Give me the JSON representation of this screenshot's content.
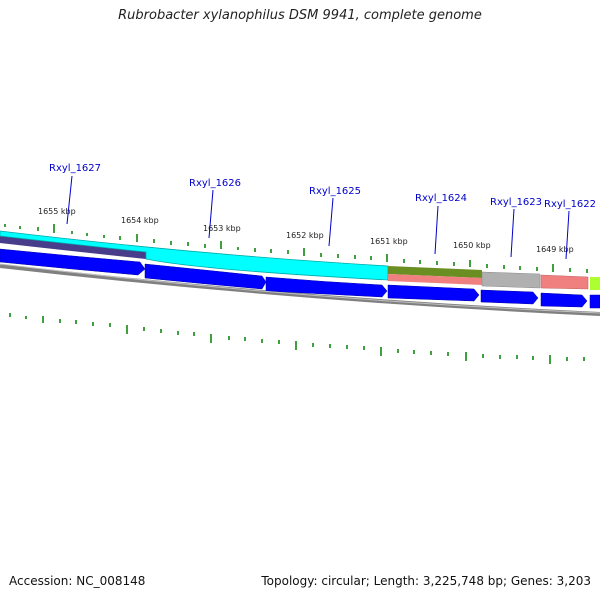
{
  "title": "Rubrobacter xylanophilus DSM 9941, complete genome",
  "footer": {
    "accession": "Accession: NC_008148",
    "summary": "Topology: circular; Length: 3,225,748 bp; Genes: 3,203"
  },
  "ticks": [
    "1655 kbp",
    "1654 kbp",
    "1653 kbp",
    "1652 kbp",
    "1651 kbp",
    "1650 kbp",
    "1649 kbp"
  ],
  "genes": [
    {
      "name": "Rxyl_1627",
      "color": "#00ffff"
    },
    {
      "name": "Rxyl_1626",
      "color": "#00ffff"
    },
    {
      "name": "Rxyl_1625",
      "color": "#00ffff"
    },
    {
      "name": "Rxyl_1624",
      "color": "#6b8e23"
    },
    {
      "name": "Rxyl_1623",
      "color": "#b0b0b0"
    },
    {
      "name": "Rxyl_1622",
      "color": "#f08080"
    }
  ],
  "colors": {
    "cds": "#0000ff",
    "backbone": "#808080",
    "gc_ticks": "#008000",
    "label_lines": "#0000cc",
    "purple_feature": "#483d8b",
    "salmon_feature": "#f08080",
    "green_feature": "#adff2f"
  }
}
